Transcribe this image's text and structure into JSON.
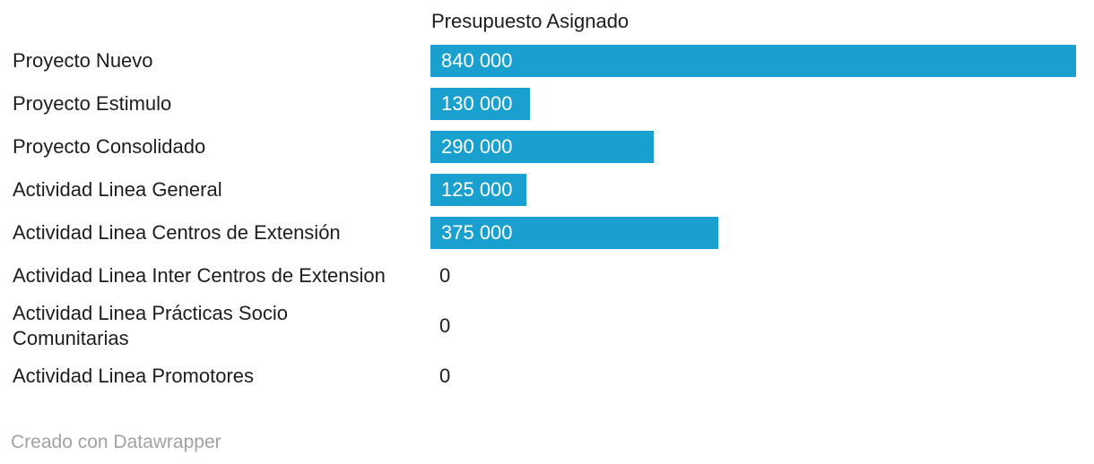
{
  "page": {
    "background": "#ffffff"
  },
  "chart_data": {
    "type": "bar",
    "orientation": "horizontal",
    "column_header": "Presupuesto Asignado",
    "categories": [
      "Proyecto Nuevo",
      "Proyecto Estimulo",
      "Proyecto Consolidado",
      "Actividad Linea General",
      "Actividad Linea Centros de Extensión",
      "Actividad Linea Inter Centros de Extension",
      "Actividad Linea Prácticas Socio Comunitarias",
      "Actividad Linea Promotores"
    ],
    "values": [
      840000,
      130000,
      290000,
      125000,
      375000,
      0,
      0,
      0
    ],
    "value_labels": [
      "840 000",
      "130 000",
      "290 000",
      "125 000",
      "375 000",
      "0",
      "0",
      "0"
    ],
    "xlim": [
      0,
      840000
    ],
    "grid": false,
    "legend": "none",
    "title": "",
    "xlabel": "",
    "ylabel": ""
  },
  "footer": {
    "credit": "Creado con Datawrapper"
  },
  "colors": {
    "bar": "#1aa0ce",
    "label_text": "#1d1d1d",
    "bar_value_text": "#ffffff",
    "zero_value_text": "#1d1d1d",
    "credit_text": "#a1a1a1"
  }
}
